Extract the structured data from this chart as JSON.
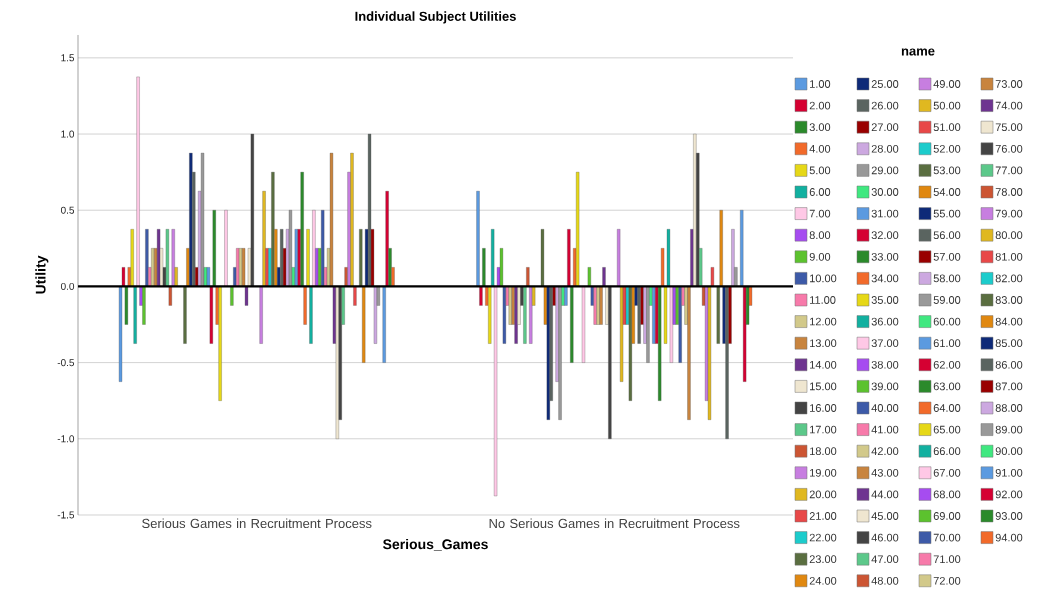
{
  "chart_data": {
    "type": "bar",
    "title": "Individual Subject Utilities",
    "xlabel": "Serious_Games",
    "ylabel": "Utility",
    "legend_title": "name",
    "categories": [
      "Serious Games in Recruitment Process",
      "No Serious Games in Recruitment Process"
    ],
    "ylim": [
      -1.5,
      1.65
    ],
    "yticks": [
      {
        "value": -1.5,
        "label": "-1.5"
      },
      {
        "value": -1.0,
        "label": "-1.0"
      },
      {
        "value": -0.5,
        "label": "-0.5"
      },
      {
        "value": 0,
        "label": "0.0"
      },
      {
        "value": 0.5,
        "label": "0.5"
      },
      {
        "value": 1.0,
        "label": "1.0"
      },
      {
        "value": 1.5,
        "label": "1.5"
      }
    ],
    "grid": "y",
    "legend": "right",
    "ref_lines": [
      {
        "axis": "y",
        "value": 0,
        "color": "#000000"
      }
    ],
    "series": [
      {
        "name": "1.00",
        "color": "#5b9ae0",
        "values": [
          -0.625,
          0.625
        ]
      },
      {
        "name": "2.00",
        "color": "#d50032",
        "values": [
          0.125,
          -0.125
        ]
      },
      {
        "name": "3.00",
        "color": "#2b8a2b",
        "values": [
          -0.25,
          0.25
        ]
      },
      {
        "name": "4.00",
        "color": "#f26a2a",
        "values": [
          0.125,
          -0.125
        ]
      },
      {
        "name": "5.00",
        "color": "#e6d817",
        "values": [
          0.375,
          -0.375
        ]
      },
      {
        "name": "6.00",
        "color": "#12b0a0",
        "values": [
          -0.375,
          0.375
        ]
      },
      {
        "name": "7.00",
        "color": "#ffc8e6",
        "values": [
          1.375,
          -1.375
        ]
      },
      {
        "name": "8.00",
        "color": "#a64cf0",
        "values": [
          -0.125,
          0.125
        ]
      },
      {
        "name": "9.00",
        "color": "#5cc22e",
        "values": [
          -0.25,
          0.25
        ]
      },
      {
        "name": "10.00",
        "color": "#3d5aa8",
        "values": [
          0.375,
          -0.375
        ]
      },
      {
        "name": "11.00",
        "color": "#f77aaa",
        "values": [
          0.125,
          -0.125
        ]
      },
      {
        "name": "12.00",
        "color": "#d2c98a",
        "values": [
          0.25,
          -0.25
        ]
      },
      {
        "name": "13.00",
        "color": "#c8843e",
        "values": [
          0.25,
          -0.25
        ]
      },
      {
        "name": "14.00",
        "color": "#6e3490",
        "values": [
          0.375,
          -0.375
        ]
      },
      {
        "name": "15.00",
        "color": "#efe6d0",
        "values": [
          0.25,
          -0.25
        ]
      },
      {
        "name": "16.00",
        "color": "#444444",
        "values": [
          0.125,
          -0.125
        ]
      },
      {
        "name": "17.00",
        "color": "#5cc88a",
        "values": [
          0.375,
          -0.375
        ]
      },
      {
        "name": "18.00",
        "color": "#cc5533",
        "values": [
          -0.125,
          0.125
        ]
      },
      {
        "name": "19.00",
        "color": "#c77ee0",
        "values": [
          0.375,
          -0.375
        ]
      },
      {
        "name": "20.00",
        "color": "#e0b820",
        "values": [
          0.125,
          -0.125
        ]
      },
      {
        "name": "21.00",
        "color": "#e84848",
        "values": [
          null,
          null
        ]
      },
      {
        "name": "22.00",
        "color": "#1ccccc",
        "values": [
          null,
          null
        ]
      },
      {
        "name": "23.00",
        "color": "#5a6e40",
        "values": [
          -0.375,
          0.375
        ]
      },
      {
        "name": "24.00",
        "color": "#e08810",
        "values": [
          0.25,
          -0.25
        ]
      },
      {
        "name": "25.00",
        "color": "#0e2a78",
        "values": [
          0.875,
          -0.875
        ]
      },
      {
        "name": "26.00",
        "color": "#5a6460",
        "values": [
          0.75,
          -0.75
        ]
      },
      {
        "name": "27.00",
        "color": "#990000",
        "values": [
          0.125,
          -0.125
        ]
      },
      {
        "name": "28.00",
        "color": "#cca8e0",
        "values": [
          0.625,
          -0.625
        ]
      },
      {
        "name": "29.00",
        "color": "#999999",
        "values": [
          0.875,
          -0.875
        ]
      },
      {
        "name": "30.00",
        "color": "#40e880",
        "values": [
          0.125,
          -0.125
        ]
      },
      {
        "name": "31.00",
        "color": "#5b9ae0",
        "values": [
          0.125,
          -0.125
        ]
      },
      {
        "name": "32.00",
        "color": "#d50032",
        "values": [
          -0.375,
          0.375
        ]
      },
      {
        "name": "33.00",
        "color": "#2b8a2b",
        "values": [
          0.5,
          -0.5
        ]
      },
      {
        "name": "34.00",
        "color": "#f26a2a",
        "values": [
          -0.25,
          0.25
        ]
      },
      {
        "name": "35.00",
        "color": "#e6d817",
        "values": [
          -0.75,
          0.75
        ]
      },
      {
        "name": "36.00",
        "color": "#12b0a0",
        "values": [
          null,
          null
        ]
      },
      {
        "name": "37.00",
        "color": "#ffc8e6",
        "values": [
          0.5,
          -0.5
        ]
      },
      {
        "name": "38.00",
        "color": "#a64cf0",
        "values": [
          null,
          null
        ]
      },
      {
        "name": "39.00",
        "color": "#5cc22e",
        "values": [
          -0.125,
          0.125
        ]
      },
      {
        "name": "40.00",
        "color": "#3d5aa8",
        "values": [
          0.125,
          -0.125
        ]
      },
      {
        "name": "41.00",
        "color": "#f77aaa",
        "values": [
          0.25,
          -0.25
        ]
      },
      {
        "name": "42.00",
        "color": "#d2c98a",
        "values": [
          0.25,
          -0.25
        ]
      },
      {
        "name": "43.00",
        "color": "#c8843e",
        "values": [
          0.25,
          -0.25
        ]
      },
      {
        "name": "44.00",
        "color": "#6e3490",
        "values": [
          -0.125,
          0.125
        ]
      },
      {
        "name": "45.00",
        "color": "#efe6d0",
        "values": [
          0.25,
          -0.25
        ]
      },
      {
        "name": "46.00",
        "color": "#444444",
        "values": [
          1.0,
          -1.0
        ]
      },
      {
        "name": "47.00",
        "color": "#5cc88a",
        "values": [
          null,
          null
        ]
      },
      {
        "name": "48.00",
        "color": "#cc5533",
        "values": [
          null,
          null
        ]
      },
      {
        "name": "49.00",
        "color": "#c77ee0",
        "values": [
          -0.375,
          0.375
        ]
      },
      {
        "name": "50.00",
        "color": "#e0b820",
        "values": [
          0.625,
          -0.625
        ]
      },
      {
        "name": "51.00",
        "color": "#e84848",
        "values": [
          0.25,
          -0.25
        ]
      },
      {
        "name": "52.00",
        "color": "#1ccccc",
        "values": [
          0.25,
          -0.25
        ]
      },
      {
        "name": "53.00",
        "color": "#5a6e40",
        "values": [
          0.75,
          -0.75
        ]
      },
      {
        "name": "54.00",
        "color": "#e08810",
        "values": [
          0.375,
          -0.375
        ]
      },
      {
        "name": "55.00",
        "color": "#0e2a78",
        "values": [
          0.125,
          -0.125
        ]
      },
      {
        "name": "56.00",
        "color": "#5a6460",
        "values": [
          0.375,
          -0.375
        ]
      },
      {
        "name": "57.00",
        "color": "#990000",
        "values": [
          0.25,
          -0.25
        ]
      },
      {
        "name": "58.00",
        "color": "#cca8e0",
        "values": [
          0.375,
          -0.375
        ]
      },
      {
        "name": "59.00",
        "color": "#999999",
        "values": [
          0.5,
          -0.5
        ]
      },
      {
        "name": "60.00",
        "color": "#40e880",
        "values": [
          0.125,
          -0.125
        ]
      },
      {
        "name": "61.00",
        "color": "#5b9ae0",
        "values": [
          0.375,
          -0.375
        ]
      },
      {
        "name": "62.00",
        "color": "#d50032",
        "values": [
          0.375,
          -0.375
        ]
      },
      {
        "name": "63.00",
        "color": "#2b8a2b",
        "values": [
          0.75,
          -0.75
        ]
      },
      {
        "name": "64.00",
        "color": "#f26a2a",
        "values": [
          -0.25,
          0.25
        ]
      },
      {
        "name": "65.00",
        "color": "#e6d817",
        "values": [
          0.375,
          -0.375
        ]
      },
      {
        "name": "66.00",
        "color": "#12b0a0",
        "values": [
          -0.375,
          0.375
        ]
      },
      {
        "name": "67.00",
        "color": "#ffc8e6",
        "values": [
          0.5,
          -0.5
        ]
      },
      {
        "name": "68.00",
        "color": "#a64cf0",
        "values": [
          0.25,
          -0.25
        ]
      },
      {
        "name": "69.00",
        "color": "#5cc22e",
        "values": [
          0.25,
          -0.25
        ]
      },
      {
        "name": "70.00",
        "color": "#3d5aa8",
        "values": [
          0.5,
          -0.5
        ]
      },
      {
        "name": "71.00",
        "color": "#f77aaa",
        "values": [
          0.125,
          -0.125
        ]
      },
      {
        "name": "72.00",
        "color": "#d2c98a",
        "values": [
          0.25,
          -0.25
        ]
      },
      {
        "name": "73.00",
        "color": "#c8843e",
        "values": [
          0.875,
          -0.875
        ]
      },
      {
        "name": "74.00",
        "color": "#6e3490",
        "values": [
          -0.375,
          0.375
        ]
      },
      {
        "name": "75.00",
        "color": "#efe6d0",
        "values": [
          -1.0,
          1.0
        ]
      },
      {
        "name": "76.00",
        "color": "#444444",
        "values": [
          -0.875,
          0.875
        ]
      },
      {
        "name": "77.00",
        "color": "#5cc88a",
        "values": [
          -0.25,
          0.25
        ]
      },
      {
        "name": "78.00",
        "color": "#cc5533",
        "values": [
          0.125,
          -0.125
        ]
      },
      {
        "name": "79.00",
        "color": "#c77ee0",
        "values": [
          0.75,
          -0.75
        ]
      },
      {
        "name": "80.00",
        "color": "#e0b820",
        "values": [
          0.875,
          -0.875
        ]
      },
      {
        "name": "81.00",
        "color": "#e84848",
        "values": [
          -0.125,
          0.125
        ]
      },
      {
        "name": "82.00",
        "color": "#1ccccc",
        "values": [
          null,
          null
        ]
      },
      {
        "name": "83.00",
        "color": "#5a6e40",
        "values": [
          0.375,
          -0.375
        ]
      },
      {
        "name": "84.00",
        "color": "#e08810",
        "values": [
          -0.5,
          0.5
        ]
      },
      {
        "name": "85.00",
        "color": "#0e2a78",
        "values": [
          0.375,
          -0.375
        ]
      },
      {
        "name": "86.00",
        "color": "#5a6460",
        "values": [
          1.0,
          -1.0
        ]
      },
      {
        "name": "87.00",
        "color": "#990000",
        "values": [
          0.375,
          -0.375
        ]
      },
      {
        "name": "88.00",
        "color": "#cca8e0",
        "values": [
          -0.375,
          0.375
        ]
      },
      {
        "name": "89.00",
        "color": "#999999",
        "values": [
          -0.125,
          0.125
        ]
      },
      {
        "name": "90.00",
        "color": "#40e880",
        "values": [
          null,
          null
        ]
      },
      {
        "name": "91.00",
        "color": "#5b9ae0",
        "values": [
          -0.5,
          0.5
        ]
      },
      {
        "name": "92.00",
        "color": "#d50032",
        "values": [
          0.625,
          -0.625
        ]
      },
      {
        "name": "93.00",
        "color": "#2b8a2b",
        "values": [
          0.25,
          -0.25
        ]
      },
      {
        "name": "94.00",
        "color": "#f26a2a",
        "values": [
          0.125,
          -0.125
        ]
      }
    ]
  }
}
